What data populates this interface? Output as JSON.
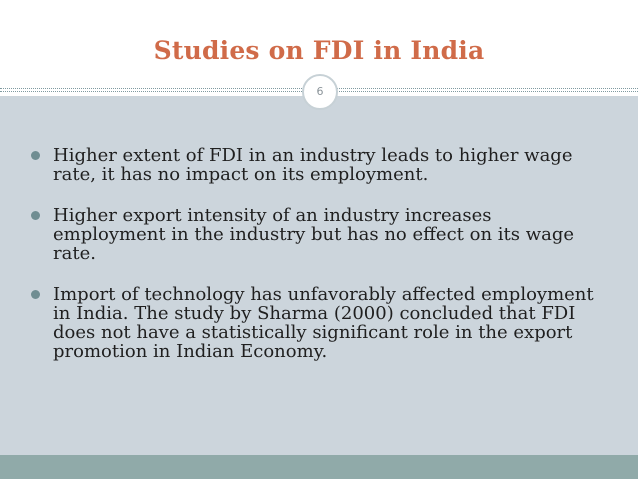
{
  "slide": {
    "title": "Studies on FDI in India",
    "page_number": "6",
    "colors": {
      "title": "#d06b49",
      "content_background": "#ccd5dc",
      "footer_bar": "#90aaa9",
      "bullet_marker": "#6f8d92"
    },
    "bullets": [
      {
        "text": "Higher extent of FDI in an industry leads to higher wage rate, it has no impact on its employment."
      },
      {
        "text": "Higher export intensity of an industry increases employment in the industry but has no effect on its wage rate."
      },
      {
        "text": "Import of technology has unfavorably affected employment in India. The study by Sharma (2000) concluded that FDI does not have a statistically significant role in the export promotion in Indian Economy."
      }
    ]
  }
}
